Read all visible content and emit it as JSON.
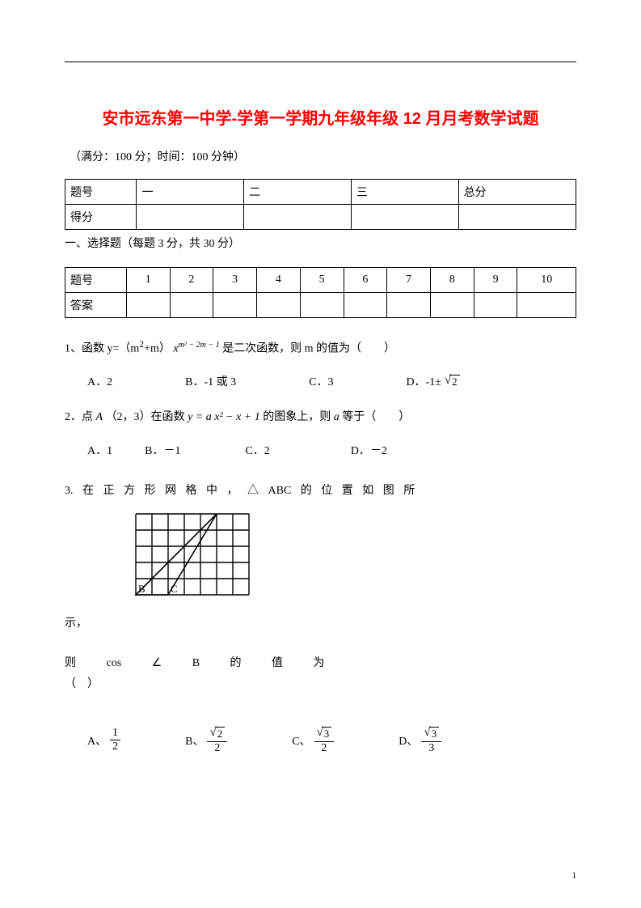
{
  "title": "安市远东第一中学-学第一学期九年级年级 12 月月考数学试题",
  "meta": "（满分：100 分；时间：100 分钟）",
  "score_table": {
    "row1": [
      "题号",
      "一",
      "二",
      "三",
      "总分"
    ],
    "row2": [
      "得分",
      "",
      "",
      "",
      ""
    ]
  },
  "section1_heading": "一、选择题（每题 3 分，共 30 分）",
  "answer_table": {
    "row1": [
      "题号",
      "1",
      "2",
      "3",
      "4",
      "5",
      "6",
      "7",
      "8",
      "9",
      "10"
    ],
    "row2": [
      "答案",
      "",
      "",
      "",
      "",
      "",
      "",
      "",
      "",
      "",
      ""
    ]
  },
  "q1": {
    "text_a": "1、函数 y=（m",
    "sup1": "2",
    "text_b": "+m）",
    "exp_base": "x",
    "exp_pow": "m² − 2m − 1",
    "text_c": "是二次函数，则 m 的值为（　　）",
    "opts": {
      "A": "A．2",
      "B": "B．-1 或 3",
      "C": "C．3",
      "D_pre": "D．-1±",
      "D_sqrt": "2"
    }
  },
  "q2": {
    "text_a": "2．点",
    "A": "A",
    "text_b": "（2，3）在函数",
    "formula_y": "y = a x² − x + 1",
    "text_c": "的图象上，则",
    "a": "a",
    "text_d": "等于（　　）",
    "opts": {
      "A": "A．1",
      "B": "B．－1",
      "C": "C．2",
      "D": "D．－2"
    }
  },
  "q3": {
    "line1_a": "3. 在 正 方 形 网 格 中 ， △ ABC 的 位 置 如 图 所",
    "line1_b": "示，",
    "line2_a": "则  cos  ∠  B  的  值  为",
    "line2_b": "（　）",
    "grid": {
      "cols": 7,
      "rows": 5,
      "cell": 20,
      "triangle": [
        [
          0,
          5
        ],
        [
          2,
          5
        ],
        [
          5,
          0
        ]
      ],
      "labels": {
        "B": [
          0,
          5
        ],
        "C": [
          2,
          5
        ],
        "A_hidden": [
          5,
          0
        ]
      }
    },
    "opts": {
      "A": {
        "label": "A、",
        "num": "1",
        "den": "2"
      },
      "B": {
        "label": "B、",
        "num_sqrt": "2",
        "den": "2"
      },
      "C": {
        "label": "C、",
        "num_sqrt": "3",
        "den": "2"
      },
      "D": {
        "label": "D、",
        "num_sqrt": "3",
        "den": "3"
      }
    }
  },
  "page_number": "1",
  "colors": {
    "title": "#ff0000",
    "text": "#000000",
    "bg": "#ffffff"
  }
}
